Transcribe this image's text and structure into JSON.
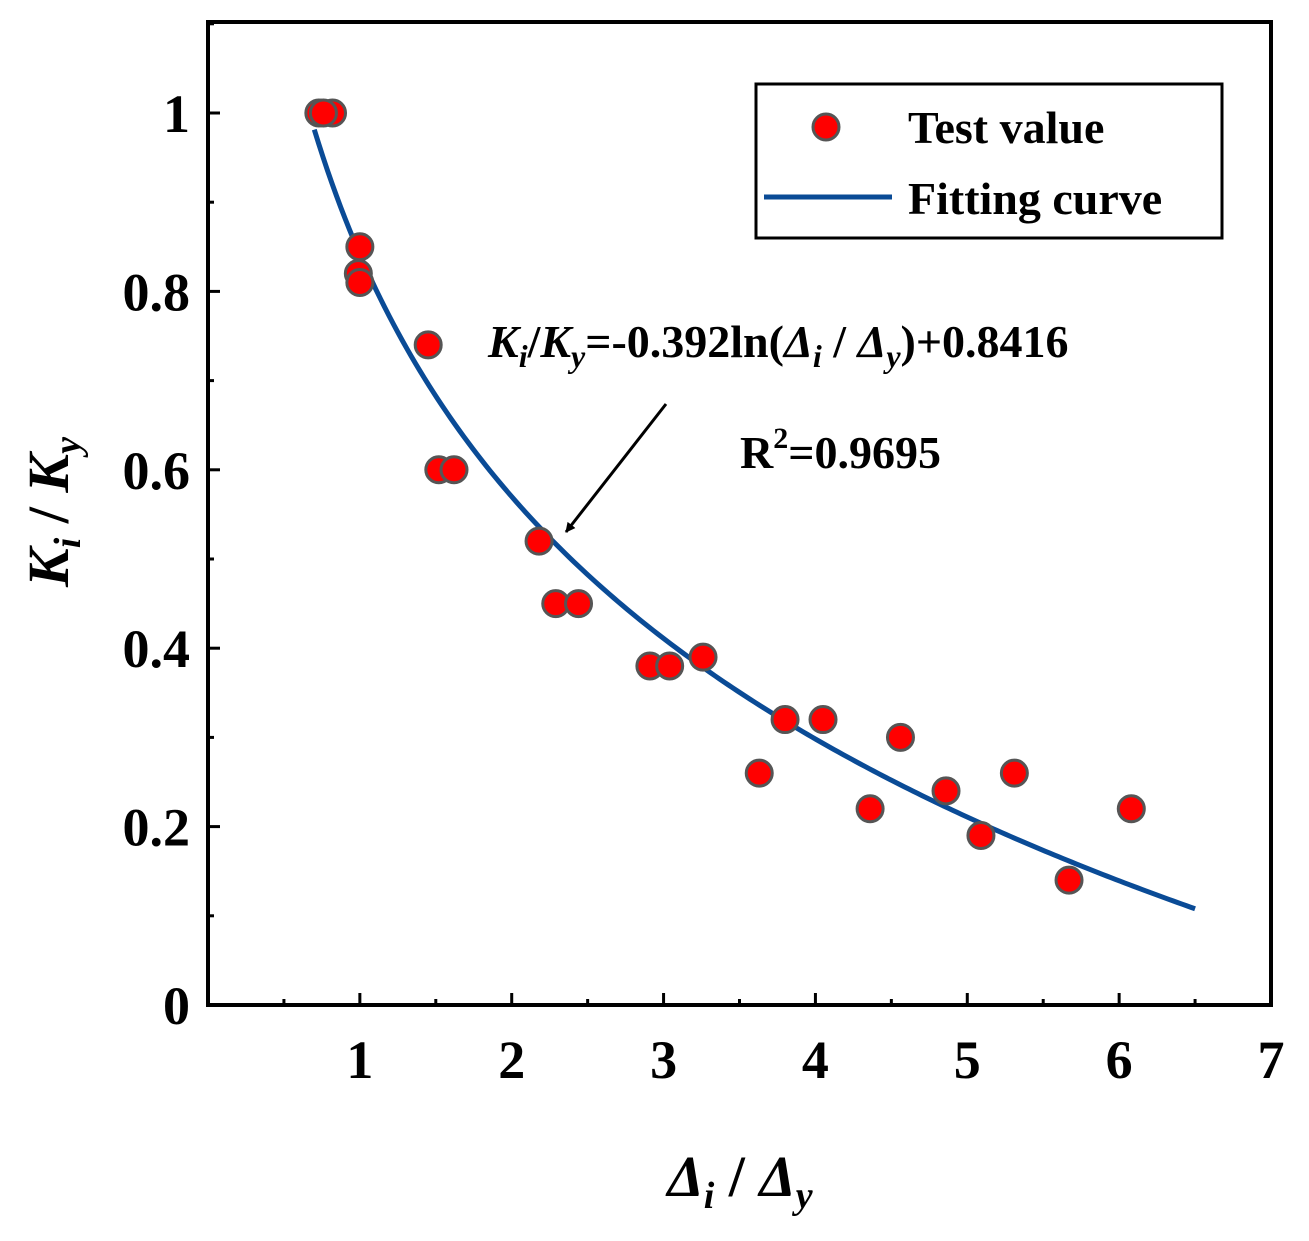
{
  "chart_data": {
    "type": "scatter",
    "title": "",
    "xlabel": {
      "main": "Δ",
      "sub1": "i",
      "sep": " / ",
      "main2": "Δ",
      "sub2": "y"
    },
    "ylabel": {
      "main": "K",
      "sub1": "i",
      "sep": " / ",
      "main2": "K",
      "sub2": "y"
    },
    "xlim": [
      0,
      7
    ],
    "ylim": [
      0,
      1.1
    ],
    "xticks": [
      1,
      2,
      3,
      4,
      5,
      6,
      7
    ],
    "xtick_labels": [
      "1",
      "2",
      "3",
      "4",
      "5",
      "6",
      "7"
    ],
    "yticks": [
      0,
      0.2,
      0.4,
      0.6,
      0.8,
      1.0
    ],
    "ytick_labels": [
      "0",
      "0.2",
      "0.4",
      "0.6",
      "0.8",
      "1"
    ],
    "series": [
      {
        "name": "Test value",
        "kind": "scatter",
        "color": "#ff0000",
        "edge_color": "#555555",
        "points": [
          [
            0.73,
            1.0
          ],
          [
            0.82,
            1.0
          ],
          [
            0.76,
            1.0
          ],
          [
            1.0,
            0.85
          ],
          [
            0.99,
            0.82
          ],
          [
            1.0,
            0.81
          ],
          [
            1.45,
            0.74
          ],
          [
            1.52,
            0.6
          ],
          [
            1.62,
            0.6
          ],
          [
            2.18,
            0.52
          ],
          [
            2.29,
            0.45
          ],
          [
            2.44,
            0.45
          ],
          [
            2.91,
            0.38
          ],
          [
            3.04,
            0.38
          ],
          [
            3.26,
            0.39
          ],
          [
            3.63,
            0.26
          ],
          [
            3.8,
            0.32
          ],
          [
            4.05,
            0.32
          ],
          [
            4.36,
            0.22
          ],
          [
            4.56,
            0.3
          ],
          [
            4.86,
            0.24
          ],
          [
            5.09,
            0.19
          ],
          [
            5.31,
            0.26
          ],
          [
            5.67,
            0.14
          ],
          [
            6.08,
            0.22
          ]
        ]
      },
      {
        "name": "Fitting curve",
        "kind": "line",
        "color": "#0a4b96",
        "formula": {
          "a": -0.392,
          "b": 0.8416,
          "x_min": 0.7,
          "x_max": 6.5
        }
      }
    ],
    "legend": {
      "position": "top-right",
      "entries": [
        "Test value",
        "Fitting curve"
      ]
    },
    "annotations": {
      "equation": {
        "k": "K",
        "ki": "i",
        "slash": "/",
        "ky": "y",
        "mid": "=-0.392ln(",
        "d": "Δ",
        "di": "i",
        "sep": " / ",
        "dy": "y",
        "tail": ")+0.8416"
      },
      "r2": {
        "base": "R",
        "sup": "2",
        "value": "=0.9695"
      }
    }
  }
}
